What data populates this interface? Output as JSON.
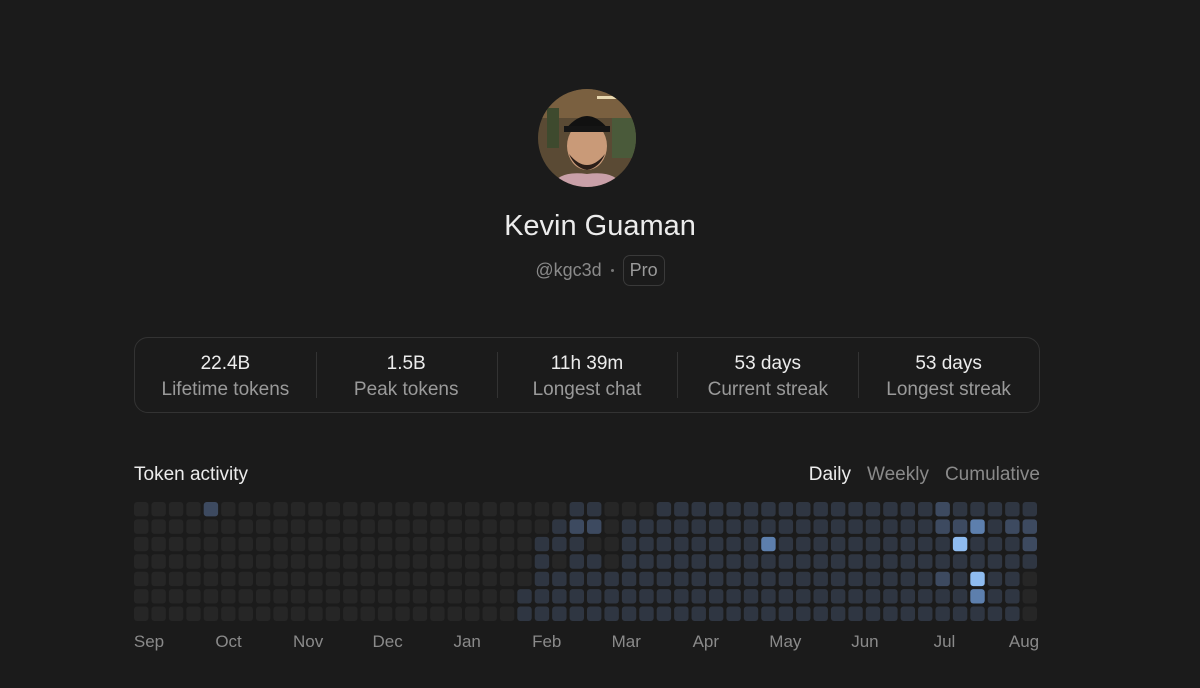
{
  "profile": {
    "name": "Kevin Guaman",
    "handle": "@kgc3d",
    "plan": "Pro"
  },
  "stats": [
    {
      "value": "22.4B",
      "label": "Lifetime tokens"
    },
    {
      "value": "1.5B",
      "label": "Peak tokens"
    },
    {
      "value": "11h 39m",
      "label": "Longest chat"
    },
    {
      "value": "53 days",
      "label": "Current streak"
    },
    {
      "value": "53 days",
      "label": "Longest streak"
    }
  ],
  "activity": {
    "title": "Token activity",
    "tabs": [
      "Daily",
      "Weekly",
      "Cumulative"
    ],
    "months": [
      "Sep",
      "Oct",
      "Nov",
      "Dec",
      "Jan",
      "Feb",
      "Mar",
      "Apr",
      "May",
      "Jun",
      "Jul",
      "Aug"
    ],
    "levels": [
      [
        0,
        0,
        0,
        0,
        0,
        0,
        0
      ],
      [
        0,
        0,
        0,
        0,
        0,
        0,
        0
      ],
      [
        0,
        0,
        0,
        0,
        0,
        0,
        0
      ],
      [
        0,
        0,
        0,
        0,
        0,
        0,
        0
      ],
      [
        2,
        0,
        0,
        0,
        0,
        0,
        0
      ],
      [
        0,
        0,
        0,
        0,
        0,
        0,
        0
      ],
      [
        0,
        0,
        0,
        0,
        0,
        0,
        0
      ],
      [
        0,
        0,
        0,
        0,
        0,
        0,
        0
      ],
      [
        0,
        0,
        0,
        0,
        0,
        0,
        0
      ],
      [
        0,
        0,
        0,
        0,
        0,
        0,
        0
      ],
      [
        0,
        0,
        0,
        0,
        0,
        0,
        0
      ],
      [
        0,
        0,
        0,
        0,
        0,
        0,
        0
      ],
      [
        0,
        0,
        0,
        0,
        0,
        0,
        0
      ],
      [
        0,
        0,
        0,
        0,
        0,
        0,
        0
      ],
      [
        0,
        0,
        0,
        0,
        0,
        0,
        0
      ],
      [
        0,
        0,
        0,
        0,
        0,
        0,
        0
      ],
      [
        0,
        0,
        0,
        0,
        0,
        0,
        0
      ],
      [
        0,
        0,
        0,
        0,
        0,
        0,
        0
      ],
      [
        0,
        0,
        0,
        0,
        0,
        0,
        0
      ],
      [
        0,
        0,
        0,
        0,
        0,
        0,
        0
      ],
      [
        0,
        0,
        0,
        0,
        0,
        0,
        0
      ],
      [
        0,
        0,
        0,
        0,
        0,
        0,
        0
      ],
      [
        0,
        0,
        0,
        0,
        0,
        1,
        1
      ],
      [
        0,
        0,
        1,
        1,
        1,
        1,
        1
      ],
      [
        0,
        1,
        1,
        0,
        1,
        1,
        1
      ],
      [
        1,
        2,
        1,
        1,
        1,
        1,
        1
      ],
      [
        1,
        2,
        0,
        1,
        1,
        1,
        1
      ],
      [
        0,
        0,
        0,
        0,
        1,
        1,
        1
      ],
      [
        0,
        1,
        1,
        1,
        1,
        1,
        1
      ],
      [
        0,
        1,
        1,
        1,
        1,
        1,
        1
      ],
      [
        1,
        1,
        1,
        1,
        1,
        1,
        1
      ],
      [
        1,
        1,
        1,
        1,
        1,
        1,
        1
      ],
      [
        1,
        1,
        1,
        1,
        1,
        1,
        1
      ],
      [
        1,
        1,
        1,
        1,
        1,
        1,
        1
      ],
      [
        1,
        1,
        1,
        1,
        1,
        1,
        1
      ],
      [
        1,
        1,
        1,
        1,
        1,
        1,
        1
      ],
      [
        1,
        1,
        3,
        1,
        1,
        1,
        1
      ],
      [
        1,
        1,
        1,
        1,
        1,
        1,
        1
      ],
      [
        1,
        1,
        1,
        1,
        1,
        1,
        1
      ],
      [
        1,
        1,
        1,
        1,
        1,
        1,
        1
      ],
      [
        1,
        1,
        1,
        1,
        1,
        1,
        1
      ],
      [
        1,
        1,
        1,
        1,
        1,
        1,
        1
      ],
      [
        1,
        1,
        1,
        1,
        1,
        1,
        1
      ],
      [
        1,
        1,
        1,
        1,
        1,
        1,
        1
      ],
      [
        1,
        1,
        1,
        1,
        1,
        1,
        1
      ],
      [
        1,
        1,
        1,
        1,
        1,
        1,
        1
      ],
      [
        2,
        2,
        1,
        1,
        2,
        1,
        1
      ],
      [
        1,
        2,
        4,
        1,
        1,
        1,
        1
      ],
      [
        1,
        3,
        1,
        1,
        4,
        3,
        1
      ],
      [
        1,
        1,
        1,
        1,
        1,
        1,
        1
      ],
      [
        1,
        2,
        1,
        1,
        1,
        1,
        1
      ],
      [
        1,
        2,
        2,
        1,
        0,
        0,
        0
      ]
    ]
  }
}
